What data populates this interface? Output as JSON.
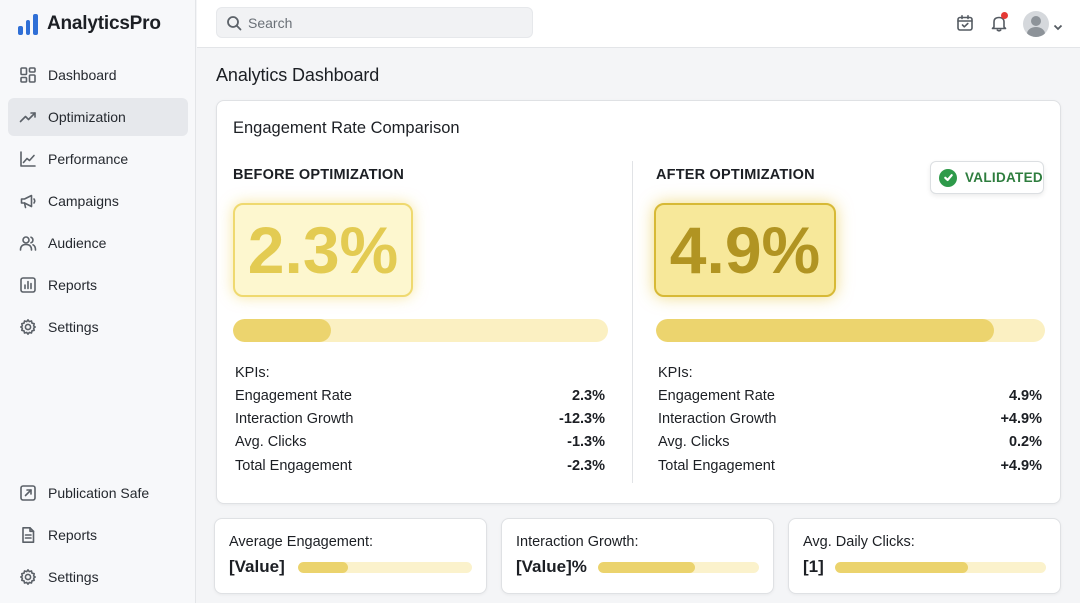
{
  "brand": {
    "name": "AnalyticsPro"
  },
  "sidebar": {
    "top_items": [
      {
        "label": "Dashboard",
        "icon": "grid-icon",
        "active": false
      },
      {
        "label": "Optimization",
        "icon": "trend-up-icon",
        "active": true
      },
      {
        "label": "Performance",
        "icon": "line-chart-icon",
        "active": false
      },
      {
        "label": "Campaigns",
        "icon": "megaphone-icon",
        "active": false
      },
      {
        "label": "Audience",
        "icon": "users-icon",
        "active": false
      },
      {
        "label": "Reports",
        "icon": "bar-report-icon",
        "active": false
      },
      {
        "label": "Settings",
        "icon": "gear-icon",
        "active": false
      }
    ],
    "bottom_items": [
      {
        "label": "Publication Safe",
        "icon": "external-box-icon"
      },
      {
        "label": "Reports",
        "icon": "document-icon"
      },
      {
        "label": "Settings",
        "icon": "gear-icon"
      }
    ]
  },
  "topbar": {
    "search_placeholder": "Search"
  },
  "page": {
    "title": "Analytics Dashboard"
  },
  "comparison": {
    "title": "Engagement Rate Comparison",
    "before": {
      "label": "BEFORE OPTIMIZATION",
      "big_value": "2.3%",
      "progress": 0.26,
      "kpi_heading": "KPIs:",
      "kpis": [
        {
          "name": "Engagement Rate",
          "value": "2.3%"
        },
        {
          "name": "Interaction Growth",
          "value": "-12.3%"
        },
        {
          "name": "Avg. Clicks",
          "value": "-1.3%"
        },
        {
          "name": "Total Engagement",
          "value": "-2.3%"
        }
      ]
    },
    "after": {
      "label": "AFTER OPTIMIZATION",
      "big_value": "4.9%",
      "progress": 0.87,
      "badge": "VALIDATED",
      "kpi_heading": "KPIs:",
      "kpis": [
        {
          "name": "Engagement Rate",
          "value": "4.9%"
        },
        {
          "name": "Interaction Growth",
          "value": "+4.9%"
        },
        {
          "name": "Avg. Clicks",
          "value": "0.2%"
        },
        {
          "name": "Total Engagement",
          "value": "+4.9%"
        }
      ]
    }
  },
  "metrics": [
    {
      "label": "Average Engagement:",
      "value": "[Value]",
      "progress": 0.29
    },
    {
      "label": "Interaction Growth:",
      "value": "[Value]%",
      "progress": 0.6
    },
    {
      "label": "Avg. Daily Clicks:",
      "value": "[1]",
      "progress": 0.63
    }
  ],
  "colors": {
    "accent": "#2f6fd6",
    "validated_green": "#2e9a4a",
    "bar_fill": "#ecd46e",
    "bar_track": "#fbf0c2",
    "notification": "#e53935"
  }
}
